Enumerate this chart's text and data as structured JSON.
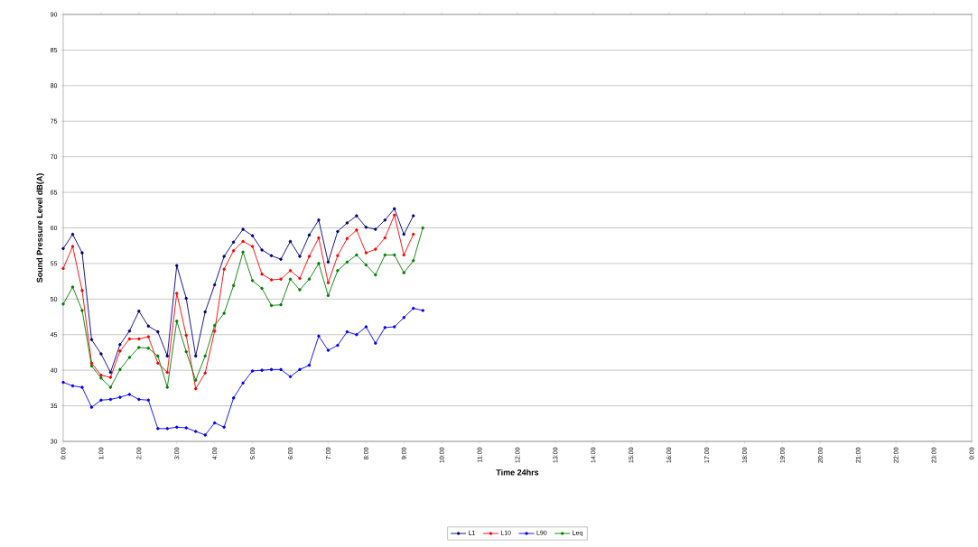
{
  "chart_data": {
    "type": "line",
    "xlabel": "Time 24hrs",
    "ylabel": "Sound Pressure Level dB(A)",
    "x": [
      0,
      0.25,
      0.5,
      0.75,
      1,
      1.25,
      1.5,
      1.75,
      2,
      2.25,
      2.5,
      2.75,
      3,
      3.25,
      3.5,
      3.75,
      4,
      4.25,
      4.5,
      4.75,
      5,
      5.25,
      5.5,
      5.75,
      6,
      6.25,
      6.5,
      6.75,
      7,
      7.25,
      7.5,
      7.75,
      8,
      8.25,
      8.5,
      8.75,
      9,
      9.25,
      9.5
    ],
    "series": [
      {
        "name": "L1",
        "color": "#000080",
        "values": [
          57.1,
          59.1,
          56.5,
          44.3,
          42.3,
          39.7,
          43.6,
          45.5,
          48.3,
          46.2,
          45.4,
          42.0,
          54.7,
          50.1,
          42.0,
          48.2,
          52.0,
          56.0,
          58.0,
          59.8,
          58.9,
          56.9,
          56.1,
          55.6,
          58.1,
          56.0,
          59.0,
          61.1,
          55.2,
          59.5,
          60.7,
          61.7,
          60.1,
          59.8,
          61.1,
          62.7,
          59.1,
          61.7,
          null
        ]
      },
      {
        "name": "L10",
        "color": "#ff0000",
        "values": [
          54.3,
          57.4,
          51.2,
          41.0,
          39.3,
          39.0,
          42.7,
          44.4,
          44.4,
          44.7,
          41.0,
          39.7,
          50.8,
          44.9,
          37.4,
          39.6,
          45.5,
          54.2,
          56.8,
          58.1,
          57.4,
          53.5,
          52.7,
          52.8,
          54.0,
          52.9,
          56.0,
          58.6,
          52.3,
          56.1,
          58.5,
          59.7,
          56.5,
          57.0,
          58.6,
          61.8,
          56.2,
          59.1,
          null
        ]
      },
      {
        "name": "L90",
        "color": "#0000ff",
        "values": [
          38.3,
          37.8,
          37.6,
          34.8,
          35.8,
          35.9,
          36.2,
          36.6,
          35.9,
          35.8,
          31.8,
          31.8,
          32.0,
          31.9,
          31.4,
          30.9,
          32.6,
          32.0,
          36.1,
          38.2,
          39.9,
          40.0,
          40.1,
          40.1,
          39.1,
          40.1,
          40.7,
          44.8,
          42.8,
          43.5,
          45.4,
          45.0,
          46.1,
          43.8,
          46.0,
          46.1,
          47.4,
          48.7,
          48.4
        ]
      },
      {
        "name": "Leq",
        "color": "#008000",
        "values": [
          49.3,
          51.7,
          48.4,
          40.6,
          38.9,
          37.6,
          40.1,
          41.8,
          43.2,
          43.1,
          42.0,
          37.6,
          46.9,
          42.6,
          38.6,
          42.0,
          46.3,
          48.0,
          51.9,
          56.6,
          52.6,
          51.5,
          49.1,
          49.2,
          52.8,
          51.3,
          52.8,
          55.0,
          50.5,
          54.0,
          55.2,
          56.2,
          54.8,
          53.4,
          56.2,
          56.2,
          53.7,
          55.4,
          60.0
        ]
      }
    ],
    "xlim": [
      0,
      24
    ],
    "xticks": [
      {
        "value": 0,
        "label": "0:00"
      },
      {
        "value": 1,
        "label": "1:00"
      },
      {
        "value": 2,
        "label": "2:00"
      },
      {
        "value": 3,
        "label": "3:00"
      },
      {
        "value": 4,
        "label": "4:00"
      },
      {
        "value": 5,
        "label": "5:00"
      },
      {
        "value": 6,
        "label": "6:00"
      },
      {
        "value": 7,
        "label": "7:00"
      },
      {
        "value": 8,
        "label": "8:00"
      },
      {
        "value": 9,
        "label": "9:00"
      },
      {
        "value": 10,
        "label": "10:00"
      },
      {
        "value": 11,
        "label": "11:00"
      },
      {
        "value": 12,
        "label": "12:00"
      },
      {
        "value": 13,
        "label": "13:00"
      },
      {
        "value": 14,
        "label": "14:00"
      },
      {
        "value": 15,
        "label": "15:00"
      },
      {
        "value": 16,
        "label": "16:00"
      },
      {
        "value": 17,
        "label": "17:00"
      },
      {
        "value": 18,
        "label": "18:00"
      },
      {
        "value": 19,
        "label": "19:00"
      },
      {
        "value": 20,
        "label": "20:00"
      },
      {
        "value": 21,
        "label": "21:00"
      },
      {
        "value": 22,
        "label": "22:00"
      },
      {
        "value": 23,
        "label": "23:00"
      },
      {
        "value": 24,
        "label": "0:00"
      }
    ],
    "ylim": [
      30,
      90
    ],
    "yticks": [
      30,
      35,
      40,
      45,
      50,
      55,
      60,
      65,
      70,
      75,
      80,
      85,
      90
    ],
    "grid": "y",
    "legend": "bottom",
    "marker": "circle"
  }
}
